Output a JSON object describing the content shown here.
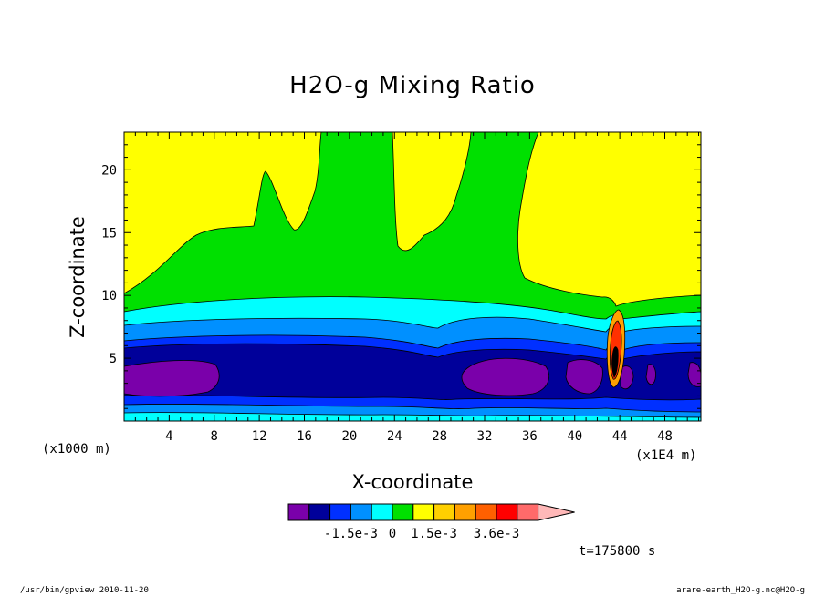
{
  "chart_data": {
    "type": "contour",
    "title": "H2O-g Mixing Ratio",
    "xlabel": "X-coordinate",
    "ylabel": "Z-coordinate",
    "x_unit_left": "(x1000 m)",
    "x_unit_right": "(x1E4 m)",
    "xticks": [
      "4",
      "8",
      "12",
      "16",
      "20",
      "24",
      "28",
      "32",
      "36",
      "40",
      "44",
      "48"
    ],
    "xtick_values": [
      4,
      8,
      12,
      16,
      20,
      24,
      28,
      32,
      36,
      40,
      44,
      48
    ],
    "yticks": [
      "5",
      "10",
      "15",
      "20"
    ],
    "ytick_values": [
      5,
      10,
      15,
      20
    ],
    "xlim": [
      0,
      51.2
    ],
    "ylim": [
      0,
      23
    ],
    "colorbar": {
      "colors": [
        "#7a00aa",
        "#00009a",
        "#0030ff",
        "#0090ff",
        "#00ffff",
        "#00e000",
        "#ffff00",
        "#ffd000",
        "#ffa000",
        "#ff6000",
        "#ff0000",
        "#ff6a6a",
        "#ffb8b8"
      ],
      "labels": [
        "-1.5e-3",
        "0",
        "1.5e-3",
        "3.6e-3"
      ],
      "label_positions": [
        3,
        5,
        7,
        10
      ]
    },
    "time_label": "t=175800 s"
  },
  "footer": {
    "left": "/usr/bin/gpview  2010-11-20",
    "right": "arare-earth_H2O-g.nc@H2O-g"
  }
}
